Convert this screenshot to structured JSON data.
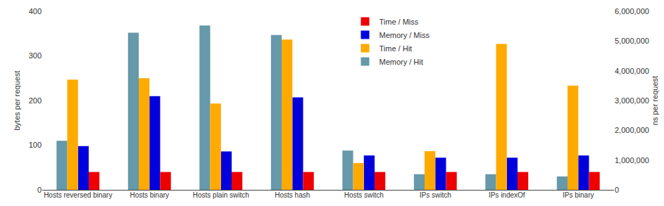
{
  "chart_data": {
    "type": "bar",
    "categories": [
      "Hosts reversed binary",
      "Hosts binary",
      "Hosts plain switch",
      "Hosts hash",
      "Hosts switch",
      "IPs switch",
      "IPs indexOf",
      "IPs binary"
    ],
    "series": [
      {
        "name": "Memory / Hit",
        "color": "#6699aa",
        "values": [
          110,
          352,
          368,
          347,
          88,
          35,
          35,
          30
        ]
      },
      {
        "name": "Time / Hit",
        "color": "#ffaa00",
        "axis": "y2",
        "values": [
          3700000,
          3750000,
          2900000,
          5050000,
          900000,
          1300000,
          4900000,
          3500000
        ]
      },
      {
        "name": "Memory / Miss",
        "color": "#0000dd",
        "values": [
          98,
          210,
          86,
          207,
          77,
          72,
          72,
          77
        ]
      },
      {
        "name": "Time / Miss",
        "color": "#ee0000",
        "axis": "y2",
        "values": [
          600000,
          600000,
          600000,
          600000,
          600000,
          600000,
          600000,
          600000
        ]
      }
    ],
    "ylabel": "bytes per request",
    "y2label": "ns per request",
    "ylim": [
      0,
      400
    ],
    "yticks": [
      0,
      100,
      200,
      300,
      400
    ],
    "y2lim": [
      0,
      6000000
    ],
    "y2ticks": [
      0,
      {
        "value": 1000000,
        "label": "1,000,000"
      },
      {
        "value": 2000000,
        "label": "2,000,000"
      },
      {
        "value": 3000000,
        "label": "3,000,000"
      },
      {
        "value": 4000000,
        "label": "4,000,000"
      },
      {
        "value": 5000000,
        "label": "5,000,000"
      },
      {
        "value": 6000000,
        "label": "6,000,000"
      }
    ],
    "grid": false,
    "legend": "upper center"
  }
}
